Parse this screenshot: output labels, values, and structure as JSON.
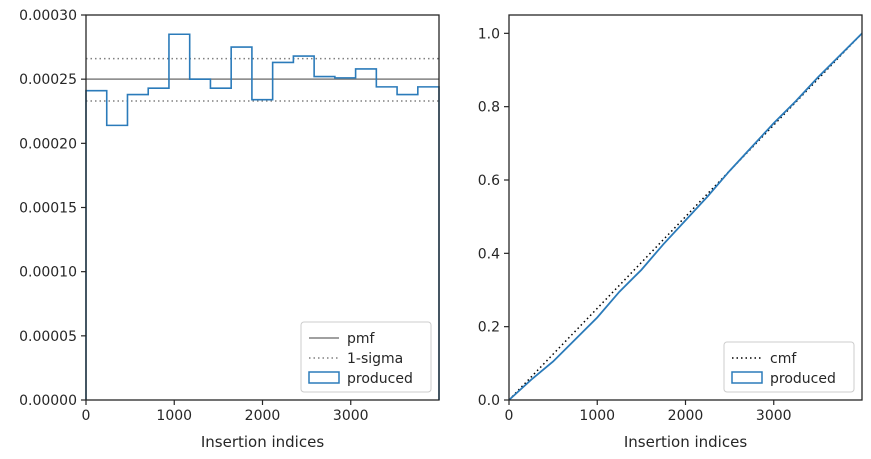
{
  "colors": {
    "hist": "#2b7bba",
    "pmf": "#808080",
    "sigma": "#808080",
    "cmf": "#000000",
    "axis": "#262626",
    "legend_border": "#cccccc"
  },
  "chart_data": [
    {
      "type": "histogram",
      "xlabel": "Insertion indices",
      "ylabel": "",
      "xlim": [
        0,
        4000
      ],
      "ylim": [
        0,
        0.0003
      ],
      "xticks": [
        0,
        1000,
        2000,
        3000
      ],
      "xtick_labels": [
        "0",
        "1000",
        "2000",
        "3000"
      ],
      "yticks": [
        0,
        5e-05,
        0.0001,
        0.00015,
        0.0002,
        0.00025,
        0.0003
      ],
      "ytick_labels": [
        "0.00000",
        "0.00005",
        "0.00010",
        "0.00015",
        "0.00020",
        "0.00025",
        "0.00030"
      ],
      "bin_edges": [
        0,
        235,
        470,
        705,
        940,
        1175,
        1410,
        1645,
        1880,
        2115,
        2350,
        2585,
        2820,
        3055,
        3290,
        3525,
        3760,
        4000
      ],
      "series": [
        {
          "name": "produced",
          "style": "step",
          "values": [
            0.000241,
            0.000214,
            0.000238,
            0.000243,
            0.000285,
            0.00025,
            0.000243,
            0.000275,
            0.000234,
            0.000263,
            0.000268,
            0.000252,
            0.000251,
            0.000258,
            0.000244,
            0.000238,
            0.000244
          ]
        },
        {
          "name": "pmf",
          "style": "solid",
          "value": 0.00025
        },
        {
          "name": "1-sigma",
          "style": "dotted",
          "values": [
            0.000266,
            0.000233
          ]
        }
      ],
      "legend": {
        "position": "lower-right",
        "entries": [
          "pmf",
          "1-sigma",
          "produced"
        ]
      }
    },
    {
      "type": "line",
      "xlabel": "Insertion indices",
      "ylabel": "",
      "xlim": [
        0,
        4000
      ],
      "ylim": [
        0,
        1.05
      ],
      "xticks": [
        0,
        1000,
        2000,
        3000
      ],
      "xtick_labels": [
        "0",
        "1000",
        "2000",
        "3000"
      ],
      "yticks": [
        0,
        0.2,
        0.4,
        0.6,
        0.8,
        1.0
      ],
      "ytick_labels": [
        "0.0",
        "0.2",
        "0.4",
        "0.6",
        "0.8",
        "1.0"
      ],
      "series": [
        {
          "name": "cmf",
          "style": "dotted",
          "x": [
            0,
            4000
          ],
          "y": [
            0,
            1.0
          ]
        },
        {
          "name": "produced",
          "style": "step",
          "x": [
            0,
            250,
            500,
            750,
            1000,
            1250,
            1500,
            1750,
            2000,
            2250,
            2500,
            2750,
            3000,
            3250,
            3500,
            3750,
            4000
          ],
          "y": [
            0,
            0.055,
            0.105,
            0.165,
            0.225,
            0.295,
            0.355,
            0.425,
            0.49,
            0.555,
            0.625,
            0.69,
            0.755,
            0.815,
            0.88,
            0.94,
            1.0
          ]
        }
      ],
      "legend": {
        "position": "lower-right",
        "entries": [
          "cmf",
          "produced"
        ]
      }
    }
  ]
}
